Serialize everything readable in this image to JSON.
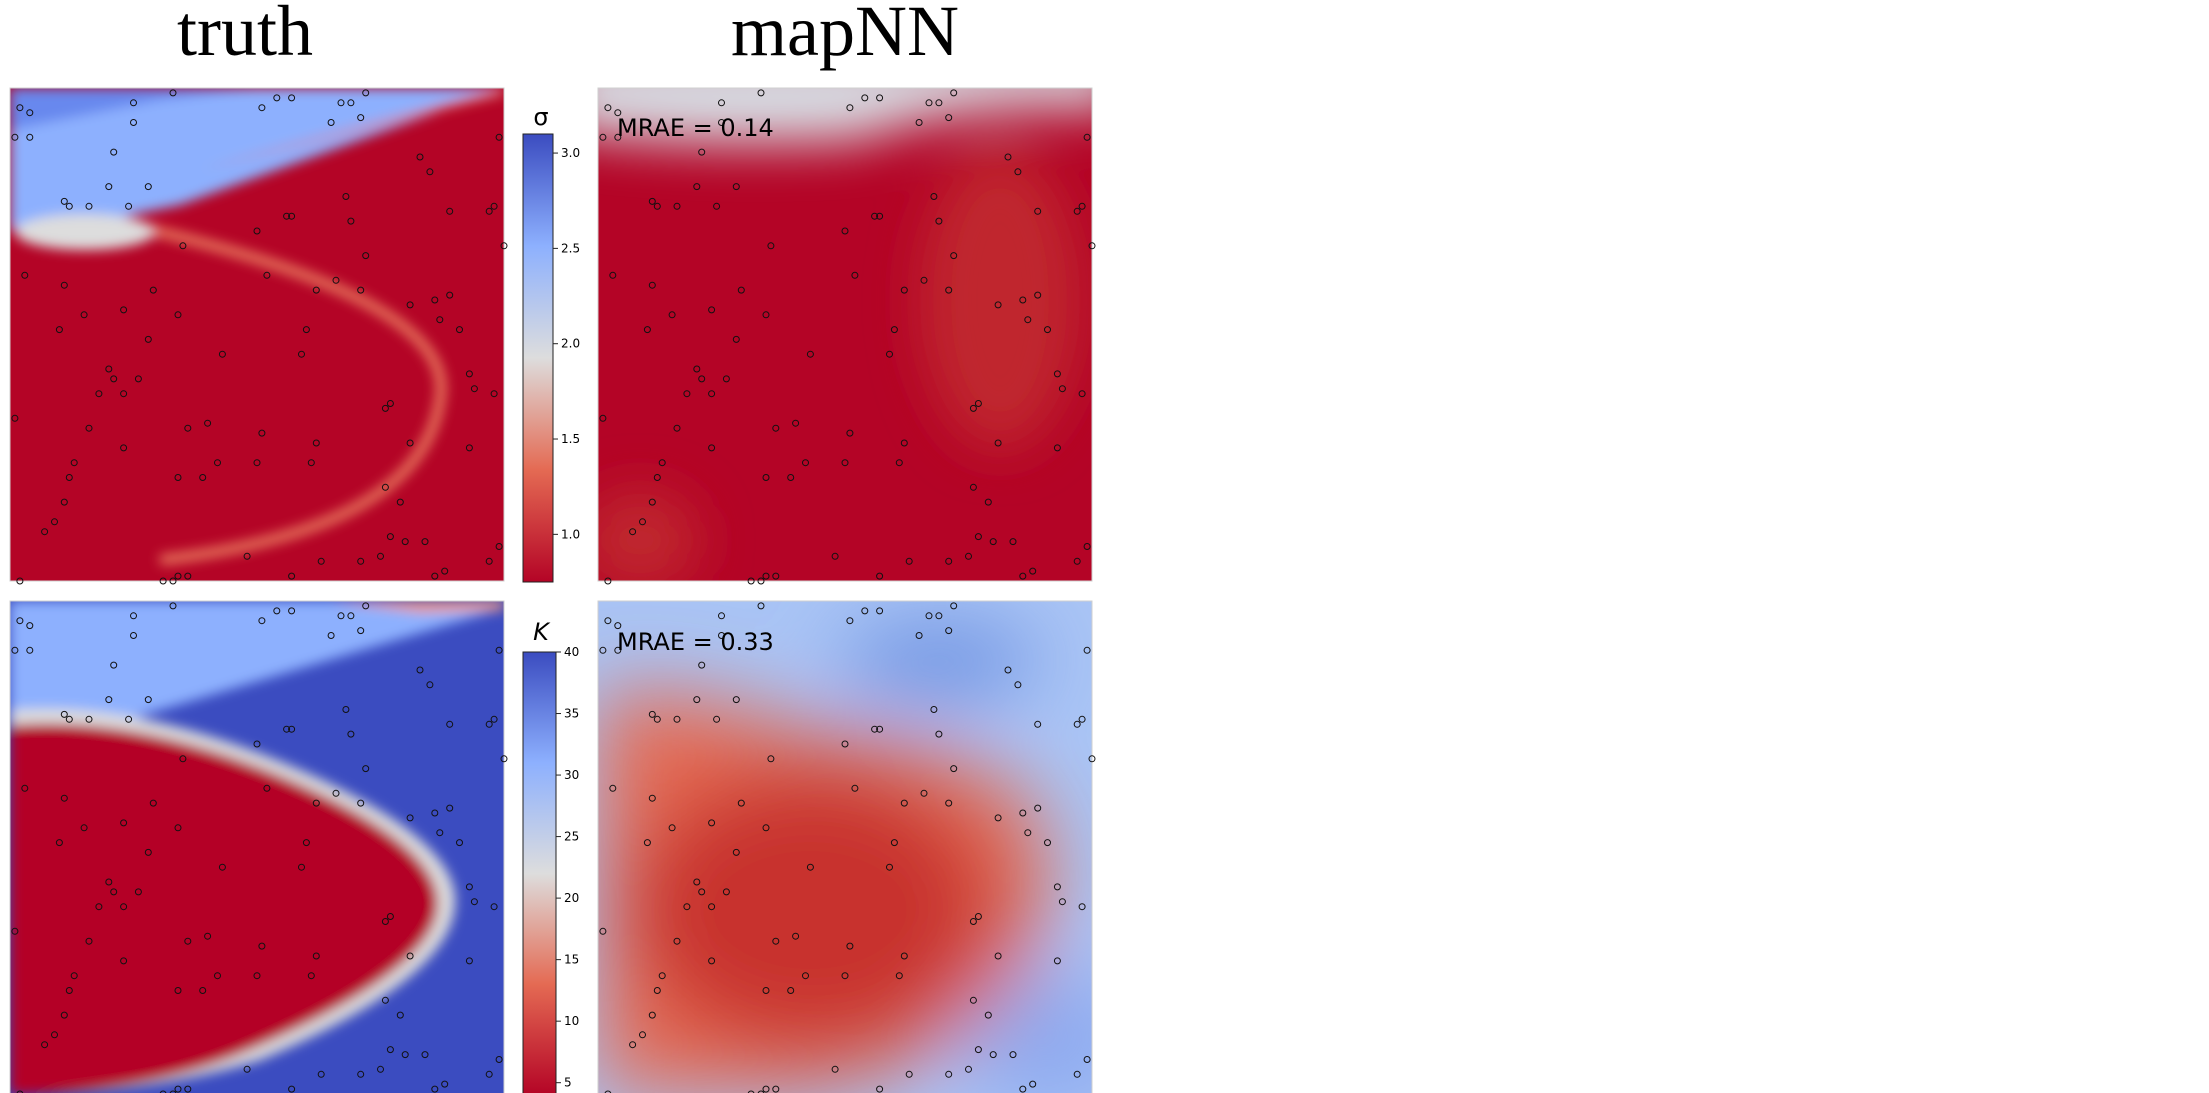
{
  "columns": [
    "truth",
    "mapNN"
  ],
  "chart_data": [
    {
      "type": "heatmap",
      "variable": "σ",
      "colormap": "coolwarm_r",
      "colorbar": {
        "min": 0.75,
        "max": 3.1,
        "ticks": [
          1.0,
          1.5,
          2.0,
          2.5,
          3.0
        ],
        "tick_labels": [
          "1.0",
          "1.5",
          "2.0",
          "2.5",
          "3.0"
        ]
      },
      "panels": [
        {
          "column": "truth",
          "description": "low-σ region (red) with high-σ (blue) wedge at top-left"
        },
        {
          "column": "mapNN",
          "metric_label": "MRAE = 0.14"
        }
      ]
    },
    {
      "type": "heatmap",
      "variable": "K",
      "colormap": "coolwarm_r",
      "colorbar": {
        "min": 4,
        "max": 40,
        "ticks": [
          5,
          10,
          15,
          20,
          25,
          30,
          35,
          40
        ],
        "tick_labels": [
          "5",
          "10",
          "15",
          "20",
          "25",
          "30",
          "35",
          "40"
        ]
      },
      "panels": [
        {
          "column": "truth"
        },
        {
          "column": "mapNN",
          "metric_label": "MRAE = 0.33"
        }
      ]
    }
  ],
  "colors": {
    "low": "#b40426",
    "mid": "#dddddd",
    "high": "#3b4cc0"
  }
}
